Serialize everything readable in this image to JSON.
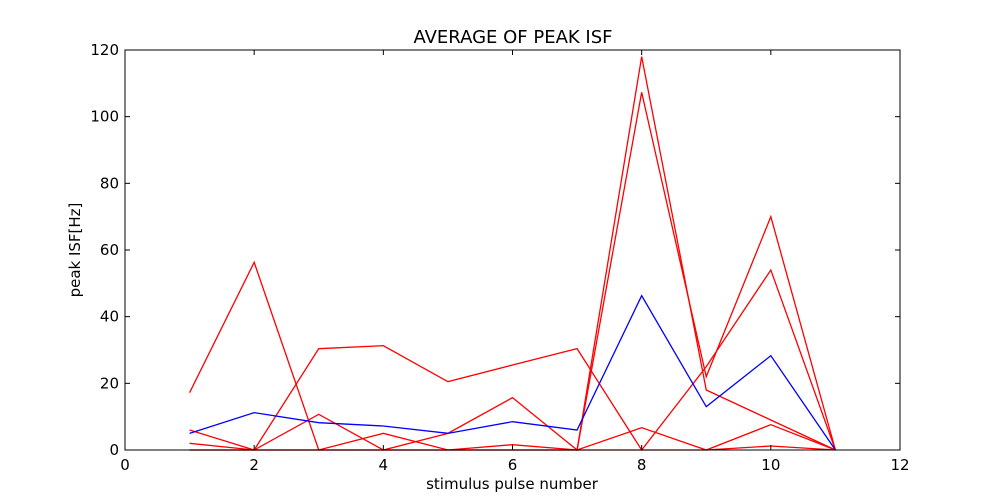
{
  "chart_data": {
    "type": "line",
    "title": "AVERAGE OF PEAK ISF",
    "xlabel": "stimulus pulse number",
    "ylabel": "peak ISF[Hz]",
    "xlim": [
      0,
      12
    ],
    "ylim": [
      0,
      120
    ],
    "xticks": [
      "0",
      "2",
      "4",
      "6",
      "8",
      "10",
      "12"
    ],
    "yticks": [
      "0",
      "20",
      "40",
      "60",
      "80",
      "100",
      "120"
    ],
    "grid": false,
    "legend": "none",
    "x": [
      1,
      2,
      3,
      4,
      5,
      6,
      7,
      8,
      9,
      10,
      11
    ],
    "series": [
      {
        "color": "#ff0000",
        "values": [
          17.2,
          56.3,
          0,
          0,
          0,
          0,
          0,
          118,
          18,
          9,
          0
        ]
      },
      {
        "color": "#ff0000",
        "values": [
          6,
          0,
          30.4,
          31.3,
          20.5,
          25.5,
          30.4,
          0,
          25,
          54,
          0
        ]
      },
      {
        "color": "#ff0000",
        "values": [
          2,
          0,
          10.7,
          0,
          5,
          15.7,
          0,
          107.3,
          22,
          70,
          0
        ]
      },
      {
        "color": "#ff0000",
        "values": [
          0,
          0,
          0,
          5,
          0,
          1.6,
          0,
          6.7,
          0,
          7.6,
          0
        ]
      },
      {
        "color": "#ff0000",
        "values": [
          0,
          0,
          0,
          0,
          0,
          0,
          0,
          0,
          0,
          1.2,
          0
        ]
      },
      {
        "color": "#0000ff",
        "values": [
          5,
          11.2,
          8.2,
          7.2,
          5,
          8.5,
          6,
          46.3,
          13,
          28.3,
          0
        ]
      }
    ]
  }
}
